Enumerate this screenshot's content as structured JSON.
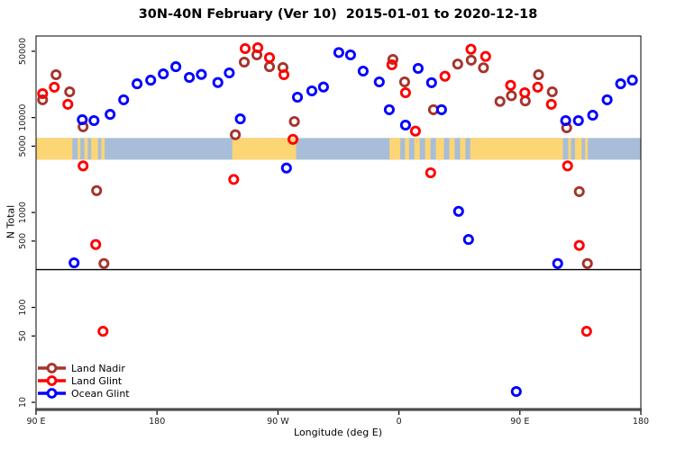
{
  "title": "30N-40N February (Ver 10)  2015-01-01 to 2020-12-18",
  "chart_data": {
    "type": "scatter",
    "title": "30N-40N February (Ver 10)  2015-01-01 to 2020-12-18",
    "xlabel": "Longitude (deg E)",
    "ylabel": "N Total",
    "y_scale": "log",
    "ylim": [
      8.4,
      72400
    ],
    "y_ticks": [
      10,
      50,
      100,
      500,
      1000,
      5000,
      10000,
      50000
    ],
    "y_tick_labels": [
      "10",
      "50",
      "100",
      "500",
      "1000",
      "5000",
      "10000",
      "50000"
    ],
    "x_axis": {
      "note": "Longitude axis starts at 90E and wraps eastward 450 degrees: 90E>180>90W>0>90E>180. Point x values below are unwrapped axis degrees (90..540); 450..540 repeats 90E..180E.",
      "range_axis_deg": [
        90,
        540
      ],
      "tick_positions_axis_deg": [
        90,
        180,
        270,
        360,
        450,
        540
      ],
      "tick_labels": [
        "90 E",
        "180",
        "90 W",
        "0",
        "90 E",
        "180"
      ]
    },
    "threshold_line_N": 250,
    "map_band": {
      "description": "horizontal strip map of 30N-40N latitude band: land vs ocean along longitude",
      "N_range": [
        3600,
        6100
      ],
      "land_color": "#FCD575",
      "ocean_color": "#A8BED8",
      "land_segments_axis_deg": [
        [
          90,
          117
        ],
        [
          121,
          123
        ],
        [
          126,
          128.5
        ],
        [
          131,
          136
        ],
        [
          138.5,
          141
        ],
        [
          236,
          283.5
        ],
        [
          353,
          361
        ],
        [
          364.5,
          367.5
        ],
        [
          371.5,
          375.5
        ],
        [
          379.5,
          383.5
        ],
        [
          387.5,
          393.5
        ],
        [
          397.5,
          401.5
        ],
        [
          405.5,
          409.5
        ],
        [
          413,
          482
        ],
        [
          486,
          488
        ],
        [
          491,
          496
        ],
        [
          498.5,
          500.5
        ]
      ]
    },
    "legend": {
      "position": "bottom-left",
      "items": [
        "Land Nadir",
        "Land Glint",
        "Ocean Glint"
      ]
    },
    "series": [
      {
        "name": "Land Nadir",
        "color": "#A5342C",
        "points": [
          [
            94.9,
            15400
          ],
          [
            104.9,
            28300
          ],
          [
            115.0,
            18700
          ],
          [
            125.0,
            8000
          ],
          [
            135.1,
            1700
          ],
          [
            140.5,
            290
          ],
          [
            238.3,
            6600
          ],
          [
            244.9,
            38400
          ],
          [
            254.3,
            45800
          ],
          [
            263.7,
            34400
          ],
          [
            273.7,
            33700
          ],
          [
            282.2,
            9100
          ],
          [
            355.5,
            41000
          ],
          [
            364.2,
            23800
          ],
          [
            385.7,
            12100
          ],
          [
            403.7,
            36600
          ],
          [
            413.8,
            40200
          ],
          [
            422.9,
            33500
          ],
          [
            435.2,
            14800
          ],
          [
            443.7,
            17000
          ],
          [
            454.0,
            15000
          ],
          [
            463.9,
            28300
          ],
          [
            474.1,
            18700
          ],
          [
            484.8,
            7800
          ],
          [
            494.2,
            1660
          ],
          [
            500.2,
            290
          ]
        ]
      },
      {
        "name": "Land Glint",
        "color": "#FF0000",
        "points": [
          [
            94.9,
            17900
          ],
          [
            103.6,
            20900
          ],
          [
            113.7,
            13800
          ],
          [
            125.0,
            3100
          ],
          [
            134.4,
            460
          ],
          [
            139.8,
            56
          ],
          [
            237.1,
            2230
          ],
          [
            245.6,
            53300
          ],
          [
            255.0,
            54500
          ],
          [
            263.7,
            42900
          ],
          [
            274.4,
            28300
          ],
          [
            281.1,
            5900
          ],
          [
            354.8,
            36000
          ],
          [
            364.9,
            18300
          ],
          [
            372.3,
            7200
          ],
          [
            383.6,
            2620
          ],
          [
            394.3,
            27300
          ],
          [
            413.6,
            52500
          ],
          [
            424.5,
            44100
          ],
          [
            443.1,
            21900
          ],
          [
            453.6,
            18300
          ],
          [
            463.3,
            20900
          ],
          [
            473.4,
            13800
          ],
          [
            485.5,
            3100
          ],
          [
            494.2,
            450
          ],
          [
            499.6,
            56
          ]
        ]
      },
      {
        "name": "Ocean Glint",
        "color": "#0000FF",
        "points": [
          [
            118.3,
            295
          ],
          [
            124.4,
            9500
          ],
          [
            133.1,
            9300
          ],
          [
            145.1,
            10800
          ],
          [
            155.2,
            15400
          ],
          [
            165.2,
            22700
          ],
          [
            175.3,
            24800
          ],
          [
            184.7,
            28900
          ],
          [
            194.0,
            34400
          ],
          [
            204.1,
            26500
          ],
          [
            213.0,
            28500
          ],
          [
            225.3,
            23400
          ],
          [
            233.8,
            29600
          ],
          [
            242.0,
            9700
          ],
          [
            276.3,
            2940
          ],
          [
            284.5,
            16400
          ],
          [
            295.2,
            19100
          ],
          [
            303.9,
            21000
          ],
          [
            315.3,
            48400
          ],
          [
            324.0,
            45800
          ],
          [
            333.4,
            30900
          ],
          [
            345.4,
            23800
          ],
          [
            352.8,
            12100
          ],
          [
            364.9,
            8340
          ],
          [
            374.3,
            33000
          ],
          [
            384.3,
            23300
          ],
          [
            391.7,
            12100
          ],
          [
            404.4,
            1030
          ],
          [
            411.8,
            520
          ],
          [
            447.3,
            13
          ],
          [
            478.1,
            290
          ],
          [
            484.1,
            9300
          ],
          [
            493.5,
            9300
          ],
          [
            504.2,
            10600
          ],
          [
            514.9,
            15400
          ],
          [
            525.0,
            22700
          ],
          [
            533.7,
            24800
          ]
        ]
      }
    ]
  }
}
